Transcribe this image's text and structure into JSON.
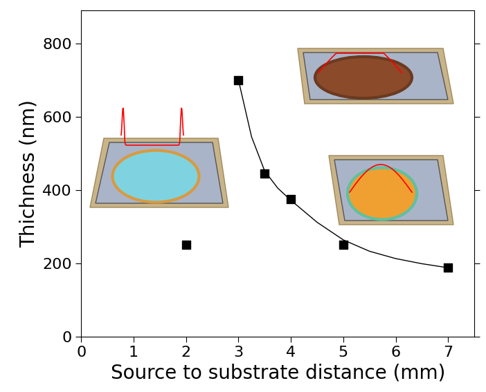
{
  "chart_data": {
    "type": "scatter",
    "x_label": "Source to substrate distance (mm)",
    "y_label": "Thichness (nm)",
    "series": [
      {
        "type": "scatter",
        "color": "#000000",
        "marker": "square",
        "x": [
          2,
          3,
          3.5,
          4,
          5,
          7
        ],
        "values": [
          250,
          700,
          445,
          375,
          250,
          188
        ]
      },
      {
        "type": "line",
        "color": "#000000",
        "line_style": "solid",
        "x": [
          3,
          3.25,
          3.5,
          3.75,
          4,
          4.5,
          5,
          5.5,
          6,
          6.5,
          7
        ],
        "values": [
          700,
          545,
          452,
          405,
          372,
          312,
          264,
          233,
          213,
          199,
          188
        ]
      }
    ],
    "xlim": [
      0,
      7.5
    ],
    "xticks": [
      0,
      1,
      2,
      3,
      4,
      5,
      6,
      7
    ],
    "ylim": [
      0,
      890
    ],
    "yticks": [
      0,
      200,
      400,
      600,
      800
    ]
  }
}
